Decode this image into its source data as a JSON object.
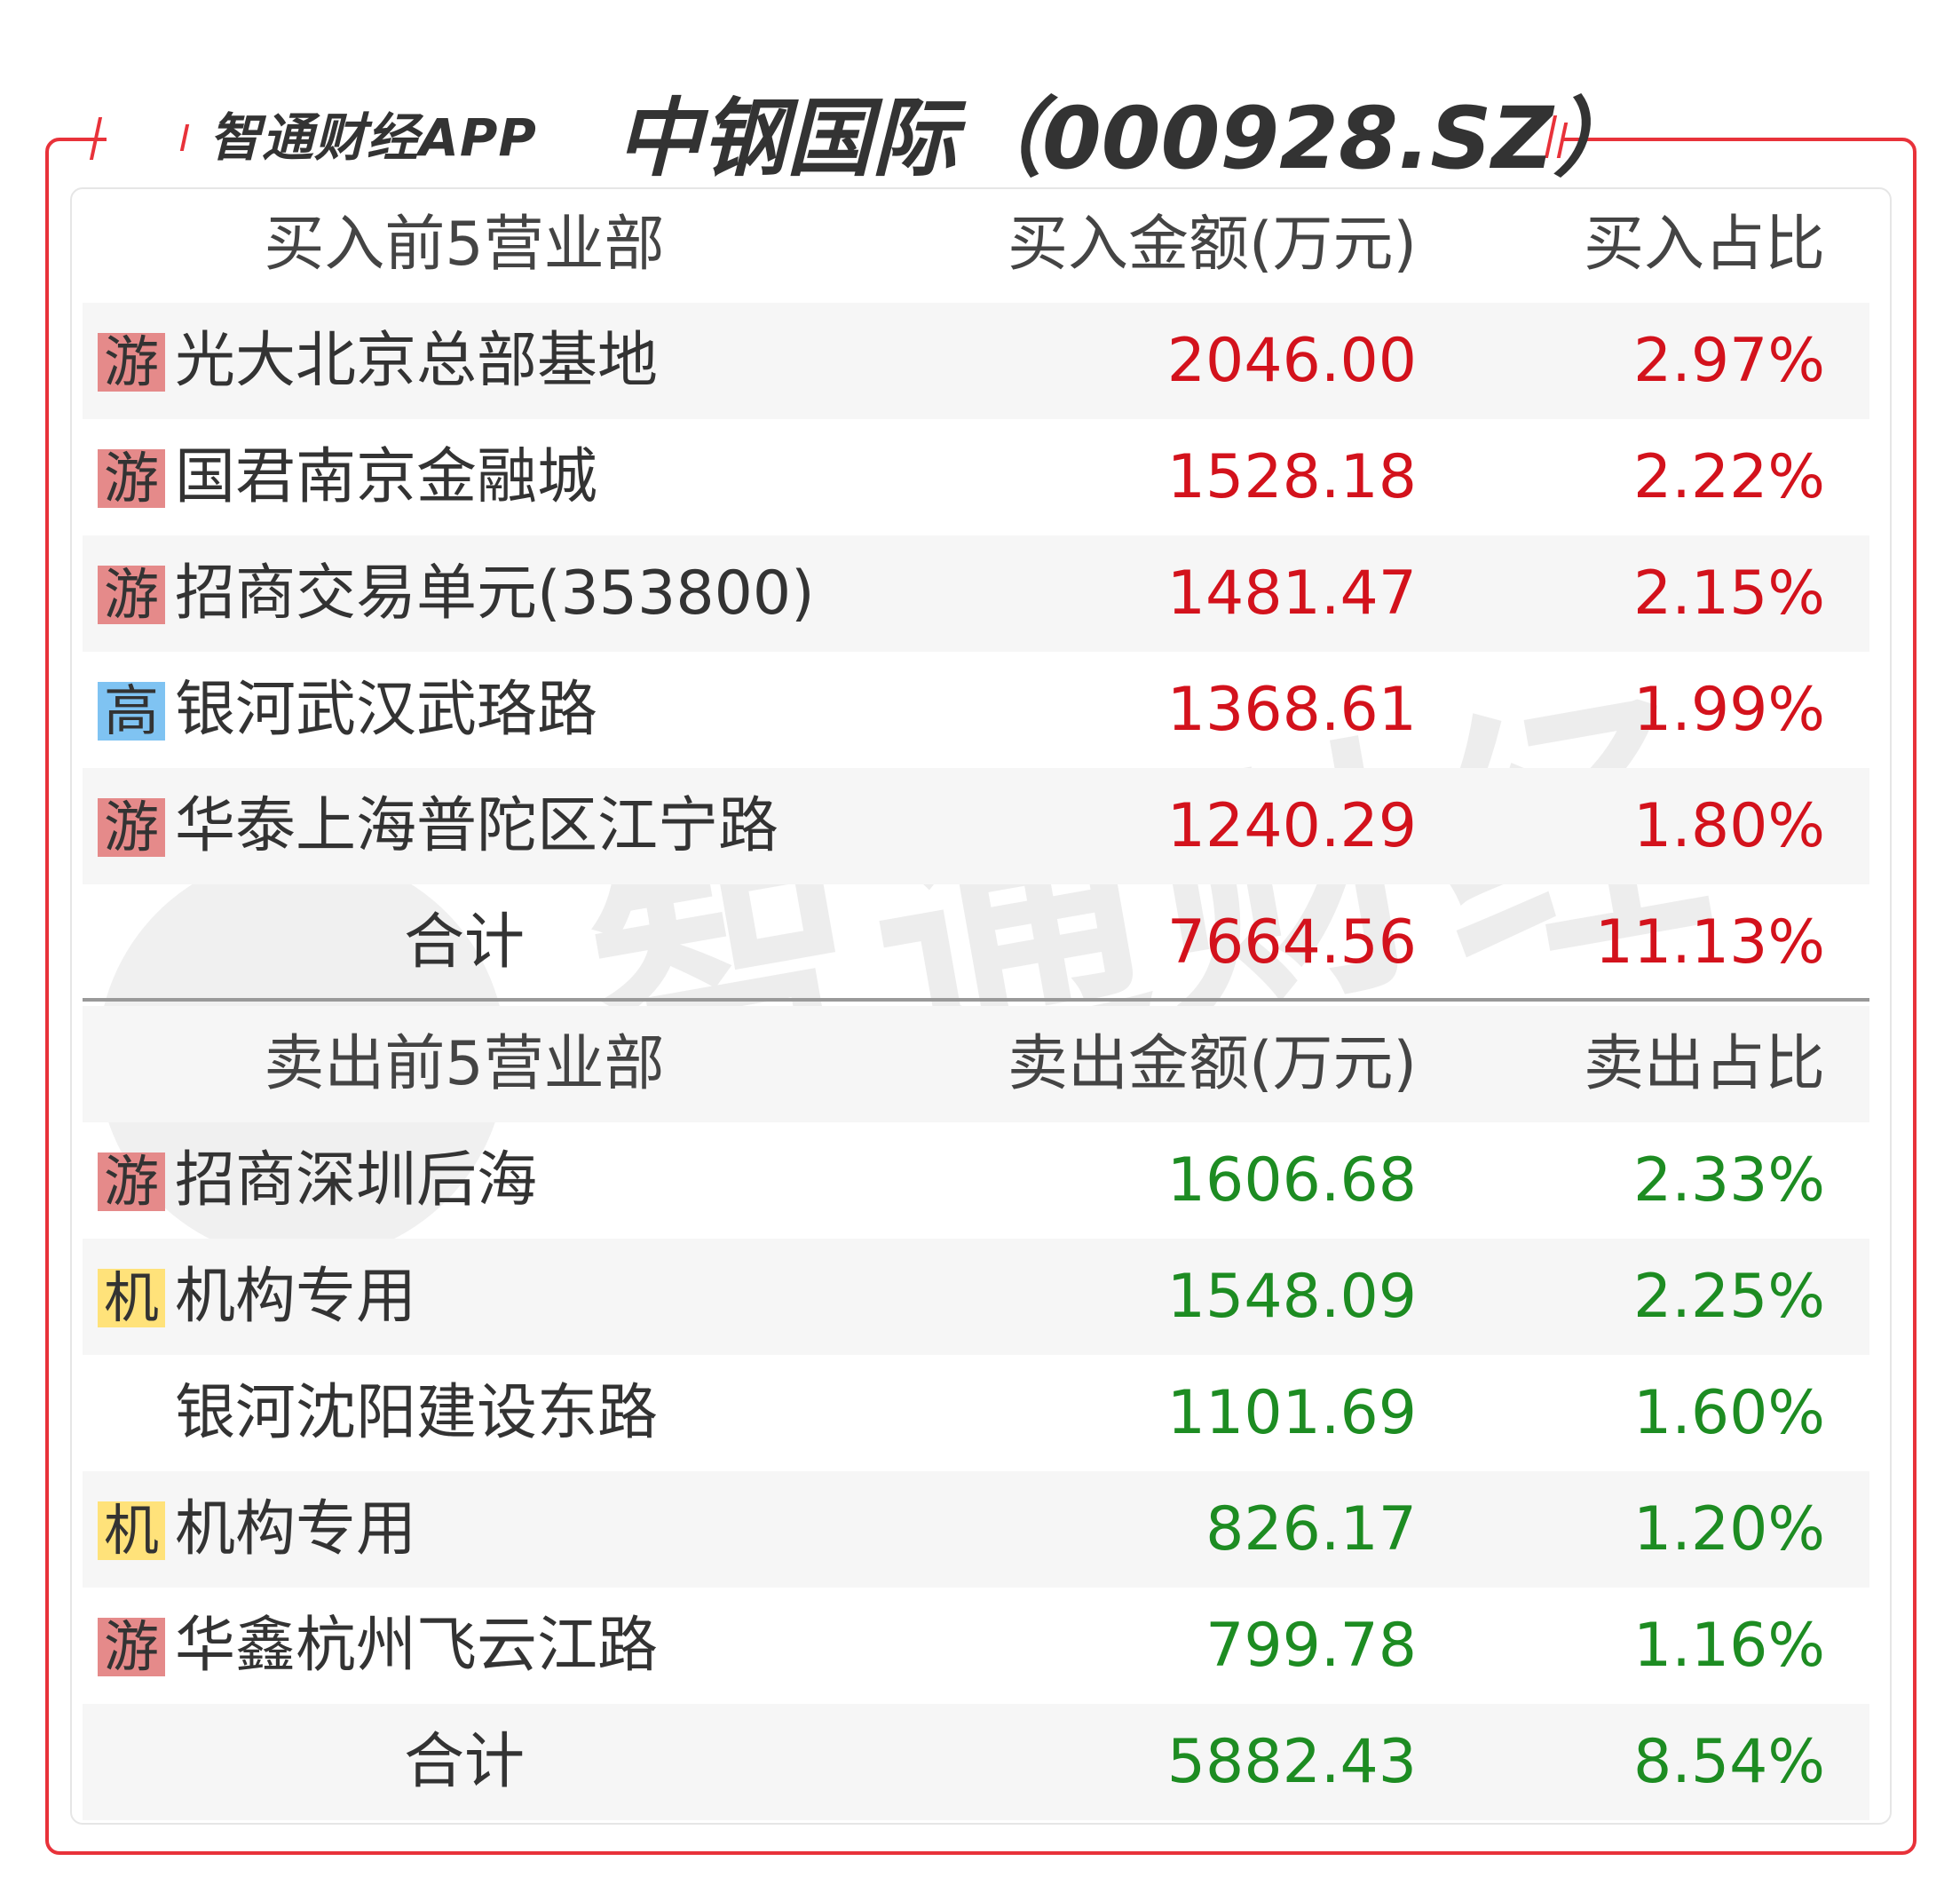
{
  "header": {
    "brand": "智通财经APP",
    "title": "中钢国际（000928.SZ）"
  },
  "watermark": {
    "text": "智通财经"
  },
  "colors": {
    "accent": "#e8323a",
    "buy_value": "#d3121c",
    "sell_value": "#1d8c22",
    "badge_you": "#e58a8a",
    "badge_gao": "#7fc3f2",
    "badge_ji": "#ffe27a"
  },
  "buy": {
    "headers": [
      "买入前5营业部",
      "买入金额(万元)",
      "买入占比"
    ],
    "rows": [
      {
        "badge": "游",
        "badge_type": "you",
        "name": "光大北京总部基地",
        "amount": "2046.00",
        "pct": "2.97%"
      },
      {
        "badge": "游",
        "badge_type": "you",
        "name": "国君南京金融城",
        "amount": "1528.18",
        "pct": "2.22%"
      },
      {
        "badge": "游",
        "badge_type": "you",
        "name": "招商交易单元(353800)",
        "amount": "1481.47",
        "pct": "2.15%"
      },
      {
        "badge": "高",
        "badge_type": "gao",
        "name": "银河武汉武珞路",
        "amount": "1368.61",
        "pct": "1.99%"
      },
      {
        "badge": "游",
        "badge_type": "you",
        "name": "华泰上海普陀区江宁路",
        "amount": "1240.29",
        "pct": "1.80%"
      }
    ],
    "total": {
      "label": "合计",
      "amount": "7664.56",
      "pct": "11.13%"
    }
  },
  "sell": {
    "headers": [
      "卖出前5营业部",
      "卖出金额(万元)",
      "卖出占比"
    ],
    "rows": [
      {
        "badge": "游",
        "badge_type": "you",
        "name": "招商深圳后海",
        "amount": "1606.68",
        "pct": "2.33%"
      },
      {
        "badge": "机",
        "badge_type": "ji",
        "name": "机构专用",
        "amount": "1548.09",
        "pct": "2.25%"
      },
      {
        "badge": "",
        "badge_type": "",
        "name": "银河沈阳建设东路",
        "amount": "1101.69",
        "pct": "1.60%"
      },
      {
        "badge": "机",
        "badge_type": "ji",
        "name": "机构专用",
        "amount": "826.17",
        "pct": "1.20%"
      },
      {
        "badge": "游",
        "badge_type": "you",
        "name": "华鑫杭州飞云江路",
        "amount": "799.78",
        "pct": "1.16%"
      }
    ],
    "total": {
      "label": "合计",
      "amount": "5882.43",
      "pct": "8.54%"
    }
  }
}
